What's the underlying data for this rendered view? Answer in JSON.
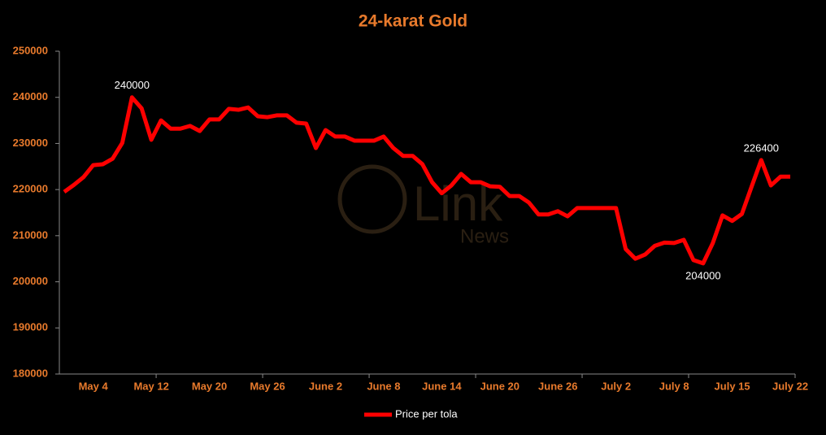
{
  "chart_data": {
    "type": "line",
    "title": "24-karat Gold",
    "categories": [
      null,
      null,
      null,
      "May 4",
      null,
      null,
      null,
      null,
      null,
      "May 12",
      null,
      null,
      null,
      null,
      null,
      "May 20",
      null,
      null,
      null,
      null,
      null,
      "May 26",
      null,
      null,
      null,
      null,
      null,
      "June 2",
      null,
      null,
      null,
      null,
      null,
      "June 8",
      null,
      null,
      null,
      null,
      null,
      "June 14",
      null,
      null,
      null,
      null,
      null,
      "June 20",
      null,
      null,
      null,
      null,
      null,
      "June 26",
      null,
      null,
      null,
      null,
      null,
      "July 2",
      null,
      null,
      null,
      null,
      null,
      "July 8",
      null,
      null,
      null,
      null,
      null,
      "July 15",
      null,
      null,
      null,
      null,
      null,
      "July 22"
    ],
    "series": [
      {
        "name": "Price per tola",
        "color": "#ff0000",
        "values": [
          219500,
          221000,
          222700,
          225300,
          225500,
          226700,
          230100,
          240000,
          237600,
          230800,
          235000,
          233200,
          233200,
          233800,
          232700,
          235200,
          235200,
          237500,
          237300,
          237800,
          235900,
          235700,
          236100,
          236100,
          234500,
          234300,
          229000,
          232900,
          231500,
          231500,
          230600,
          230600,
          230600,
          231500,
          229000,
          227300,
          227300,
          225500,
          221600,
          219200,
          220900,
          223400,
          221600,
          221600,
          220700,
          220600,
          218600,
          218600,
          217200,
          214600,
          214600,
          215300,
          214200,
          216000,
          216000,
          216000,
          216000,
          216000,
          207100,
          205000,
          205900,
          207800,
          208500,
          208400,
          209100,
          204700,
          204000,
          208400,
          214400,
          213200,
          214700,
          220600,
          226400,
          220900,
          222800,
          222800
        ]
      }
    ],
    "data_labels": [
      7,
      66,
      72
    ],
    "ylim": [
      180000,
      250000
    ],
    "yticks": [
      180000,
      190000,
      200000,
      210000,
      220000,
      230000,
      240000,
      250000
    ],
    "grid": false,
    "legend": "bottom",
    "watermark": [
      "Link",
      "News"
    ]
  }
}
